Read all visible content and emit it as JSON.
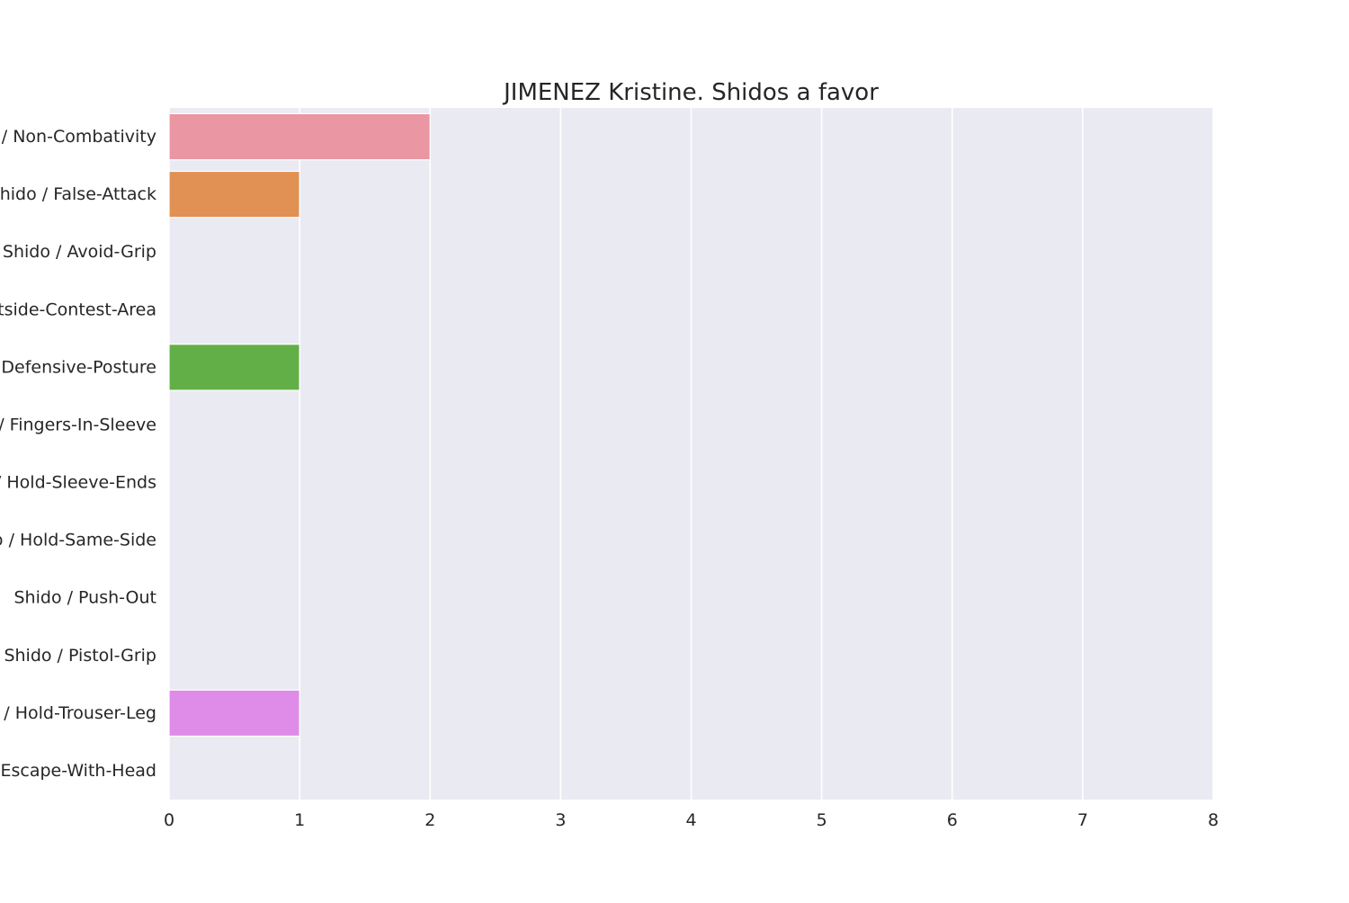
{
  "chart_data": {
    "type": "bar",
    "orientation": "horizontal",
    "title": "JIMENEZ Kristine. Shidos a favor",
    "xlabel": "",
    "ylabel": "",
    "categories": [
      "Shido / Non-Combativity",
      "Shido / False-Attack",
      "Shido / Avoid-Grip",
      "Shido / Outside-Contest-Area",
      "Shido / Defensive-Posture",
      "Shido / Fingers-In-Sleeve",
      "Shido / Hold-Sleeve-Ends",
      "Shido / Hold-Same-Side",
      "Shido / Push-Out",
      "Shido / Pistol-Grip",
      "Shido / Hold-Trouser-Leg",
      "Shido / Escape-With-Head"
    ],
    "values": [
      2,
      1,
      0,
      0,
      1,
      0,
      0,
      0,
      0,
      0,
      1,
      0
    ],
    "colors": [
      "#ea96a3",
      "#e19153",
      "#c9a443",
      "#a8a43f",
      "#63af47",
      "#4bab8a",
      "#52a8a4",
      "#57a5be",
      "#5ea2e0",
      "#a99aee",
      "#df8be8",
      "#ec8dc5"
    ],
    "xlim": [
      0,
      8
    ],
    "xticks": [
      0,
      1,
      2,
      3,
      4,
      5,
      6,
      7,
      8
    ],
    "grid": true,
    "legend": "none",
    "background_color": "#eaeaf2"
  }
}
